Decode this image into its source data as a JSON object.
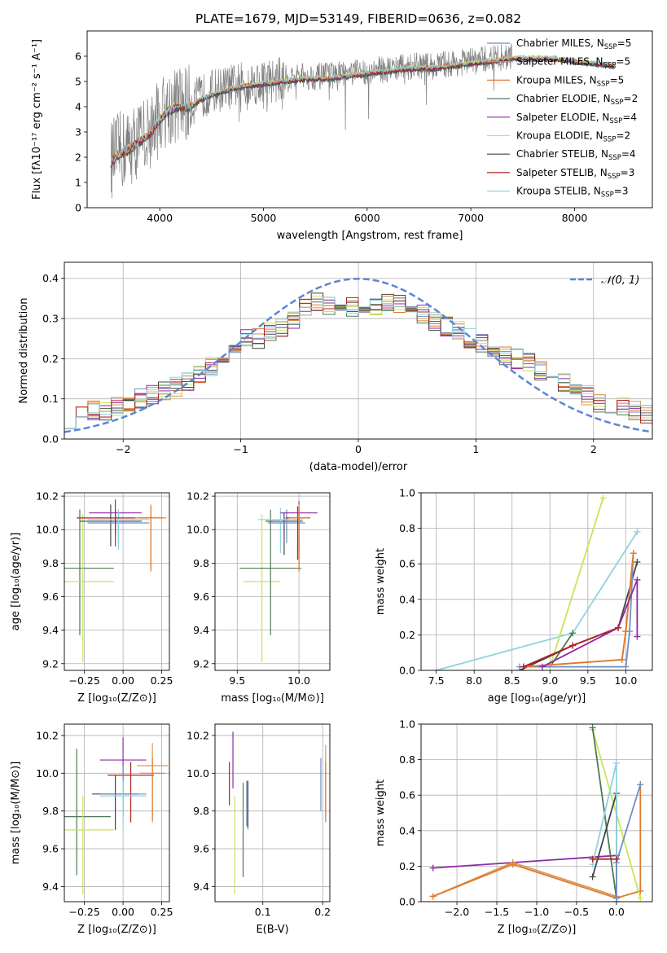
{
  "figure": {
    "title": "PLATE=1679, MJD=53149, FIBERID=0636, z=0.082"
  },
  "colors": {
    "Chabrier MILES": "#6f8fc6",
    "Salpeter MILES": "#d99a55",
    "Kroupa MILES": "#e07a2e",
    "Chabrier ELODIE": "#4f7a55",
    "Salpeter ELODIE": "#8e2aa6",
    "Kroupa ELODIE": "#c9e45a",
    "Chabrier STELIB": "#444444",
    "Salpeter STELIB": "#b22222",
    "Kroupa STELIB": "#8fd3e0",
    "data": "#808080",
    "gauss": "#5b86d6"
  },
  "chart_data": [
    {
      "type": "line",
      "xlabel": "wavelength [Angstrom, rest frame]",
      "ylabel": "Flux [fλ10⁻¹⁷ erg cm⁻² s⁻¹ A⁻¹]",
      "xlim": [
        3300,
        8750
      ],
      "ylim": [
        0,
        7
      ],
      "xticks": [
        4000,
        5000,
        6000,
        7000,
        8000
      ],
      "yticks": [
        0,
        1,
        2,
        3,
        4,
        5,
        6
      ],
      "legend": [
        {
          "label": "Chabrier MILES, N",
          "sub": "SSP",
          "tail": "=5"
        },
        {
          "label": "Salpeter MILES, N",
          "sub": "SSP",
          "tail": "=5"
        },
        {
          "label": "Kroupa MILES, N",
          "sub": "SSP",
          "tail": "=5"
        },
        {
          "label": "Chabrier ELODIE, N",
          "sub": "SSP",
          "tail": "=2"
        },
        {
          "label": "Salpeter ELODIE, N",
          "sub": "SSP",
          "tail": "=4"
        },
        {
          "label": "Kroupa ELODIE, N",
          "sub": "SSP",
          "tail": "=2"
        },
        {
          "label": "Chabrier STELIB, N",
          "sub": "SSP",
          "tail": "=4"
        },
        {
          "label": "Salpeter STELIB, N",
          "sub": "SSP",
          "tail": "=3"
        },
        {
          "label": "Kroupa STELIB, N",
          "sub": "SSP",
          "tail": "=3"
        }
      ],
      "legend_position": "upper right",
      "data_continuum": {
        "x": [
          3530,
          3600,
          3700,
          3800,
          3900,
          4000,
          4100,
          4200,
          4300,
          4400,
          4500,
          4600,
          4800,
          5000,
          5200,
          5400,
          5600,
          5800,
          6000,
          6200,
          6400,
          6600,
          6800,
          7000,
          7200,
          7400
        ],
        "y": [
          1.9,
          2.2,
          2.4,
          2.7,
          3.0,
          3.6,
          4.0,
          4.1,
          4.1,
          4.4,
          4.6,
          4.7,
          4.9,
          5.0,
          5.1,
          5.2,
          5.2,
          5.3,
          5.4,
          5.5,
          5.6,
          5.6,
          5.7,
          5.8,
          5.9,
          6.0
        ]
      },
      "model_continuum": {
        "x": [
          3530,
          3600,
          3700,
          3800,
          3900,
          4000,
          4100,
          4200,
          4300,
          4400,
          4600,
          4800,
          5000,
          5200,
          5400,
          5600,
          5800,
          6000,
          6200,
          6400,
          6600,
          6800,
          7000,
          7200,
          7400,
          7600,
          7800,
          8000,
          8200,
          8400
        ],
        "y": [
          1.8,
          2.1,
          2.3,
          2.6,
          2.9,
          3.5,
          3.9,
          4.0,
          4.0,
          4.3,
          4.6,
          4.8,
          4.9,
          5.0,
          5.1,
          5.1,
          5.2,
          5.3,
          5.4,
          5.5,
          5.5,
          5.6,
          5.7,
          5.8,
          5.9,
          5.9,
          5.9,
          5.8,
          5.7,
          5.6
        ]
      }
    },
    {
      "type": "bar",
      "xlabel": "(data-model)/error",
      "ylabel": "Normed distribution",
      "xlim": [
        -2.5,
        2.5
      ],
      "ylim": [
        0,
        0.44
      ],
      "xticks": [
        -2,
        -1,
        0,
        1,
        2
      ],
      "yticks": [
        0.0,
        0.1,
        0.2,
        0.3,
        0.4
      ],
      "gauss_label": "𝒩(0, 1)",
      "bin_width": 0.1,
      "bin_left_edges": [
        -2.5,
        -2.4,
        -2.3,
        -2.2,
        -2.1,
        -2.0,
        -1.9,
        -1.8,
        -1.7,
        -1.6,
        -1.5,
        -1.4,
        -1.3,
        -1.2,
        -1.1,
        -1.0,
        -0.9,
        -0.8,
        -0.7,
        -0.6,
        -0.5,
        -0.4,
        -0.3,
        -0.2,
        -0.1,
        0.0,
        0.1,
        0.2,
        0.3,
        0.4,
        0.5,
        0.6,
        0.7,
        0.8,
        0.9,
        1.0,
        1.1,
        1.2,
        1.3,
        1.4,
        1.5,
        1.6,
        1.7,
        1.8,
        1.9,
        2.0,
        2.1,
        2.2,
        2.3,
        2.4
      ],
      "hist": [
        0.05,
        0.06,
        0.07,
        0.07,
        0.08,
        0.09,
        0.1,
        0.11,
        0.12,
        0.13,
        0.14,
        0.16,
        0.18,
        0.2,
        0.22,
        0.25,
        0.25,
        0.27,
        0.28,
        0.3,
        0.33,
        0.34,
        0.33,
        0.32,
        0.33,
        0.32,
        0.33,
        0.34,
        0.34,
        0.33,
        0.31,
        0.29,
        0.28,
        0.27,
        0.25,
        0.24,
        0.23,
        0.21,
        0.2,
        0.19,
        0.17,
        0.15,
        0.14,
        0.13,
        0.11,
        0.09,
        0.09,
        0.08,
        0.07,
        0.06
      ]
    },
    {
      "type": "scatter",
      "xlabel": "Z [log₁₀(Z/Z⊙)]",
      "ylabel": "age  [log₁₀(age/yr)]",
      "xlim": [
        -0.38,
        0.3
      ],
      "ylim": [
        9.16,
        10.22
      ],
      "xticks": [
        -0.25,
        0.0,
        0.25
      ],
      "xticklabels": [
        "−0.25",
        "0.00",
        "0.25"
      ],
      "yticks": [
        9.2,
        9.4,
        9.6,
        9.8,
        10.0,
        10.2
      ],
      "points": [
        {
          "model": "Chabrier ELODIE",
          "x": -0.28,
          "y": 9.77,
          "xerr": 0.22,
          "yerr": [
            0.4,
            0.35
          ]
        },
        {
          "model": "Kroupa ELODIE",
          "x": -0.26,
          "y": 9.69,
          "xerr": 0.2,
          "yerr": [
            0.48,
            0.4
          ]
        },
        {
          "model": "Chabrier STELIB",
          "x": -0.08,
          "y": 10.05,
          "xerr": 0.2,
          "yerr": [
            0.15,
            0.1
          ]
        },
        {
          "model": "Salpeter ELODIE",
          "x": -0.05,
          "y": 10.1,
          "xerr": 0.17,
          "yerr": [
            0.2,
            0.08
          ]
        },
        {
          "model": "Chabrier MILES",
          "x": -0.03,
          "y": 10.04,
          "xerr": 0.2,
          "yerr": [
            0.12,
            0.08
          ]
        },
        {
          "model": "Kroupa STELIB",
          "x": -0.03,
          "y": 10.06,
          "xerr": 0.2,
          "yerr": [
            0.18,
            0.06
          ]
        },
        {
          "model": "Salpeter STELIB",
          "x": -0.05,
          "y": 10.07,
          "xerr": 0.25,
          "yerr": [
            0.1,
            0.05
          ]
        },
        {
          "model": "Salpeter MILES",
          "x": 0.18,
          "y": 10.07,
          "xerr": 0.1,
          "yerr": [
            0.3,
            0.08
          ]
        },
        {
          "model": "Kroupa MILES",
          "x": 0.18,
          "y": 10.07,
          "xerr": 0.08,
          "yerr": [
            0.32,
            0.07
          ]
        }
      ]
    },
    {
      "type": "scatter",
      "xlabel": "mass [log₁₀(M/M⊙)]",
      "ylabel": "",
      "xlim": [
        9.32,
        10.25
      ],
      "ylim": [
        9.16,
        10.22
      ],
      "xticks": [
        9.5,
        10.0
      ],
      "xticklabels": [
        "9.5",
        "10.0"
      ],
      "yticks": [
        9.2,
        9.4,
        9.6,
        9.8,
        10.0,
        10.2
      ],
      "points": [
        {
          "model": "Kroupa ELODIE",
          "x": 9.7,
          "y": 9.69,
          "xerr": 0.15,
          "yerr": [
            0.48,
            0.4
          ]
        },
        {
          "model": "Chabrier ELODIE",
          "x": 9.77,
          "y": 9.77,
          "xerr": 0.25,
          "yerr": [
            0.4,
            0.35
          ]
        },
        {
          "model": "Chabrier STELIB",
          "x": 9.88,
          "y": 10.05,
          "xerr": 0.15,
          "yerr": [
            0.2,
            0.05
          ]
        },
        {
          "model": "Kroupa STELIB",
          "x": 9.85,
          "y": 10.06,
          "xerr": 0.18,
          "yerr": [
            0.2,
            0.07
          ]
        },
        {
          "model": "Chabrier MILES",
          "x": 9.9,
          "y": 10.04,
          "xerr": 0.15,
          "yerr": [
            0.12,
            0.08
          ]
        },
        {
          "model": "Salpeter STELIB",
          "x": 9.99,
          "y": 10.07,
          "xerr": 0.1,
          "yerr": [
            0.25,
            0.07
          ]
        },
        {
          "model": "Salpeter ELODIE",
          "x": 10.0,
          "y": 10.1,
          "xerr": 0.15,
          "yerr": [
            0.25,
            0.07
          ]
        },
        {
          "model": "Salpeter MILES",
          "x": 10.0,
          "y": 10.07,
          "xerr": 0.08,
          "yerr": [
            0.3,
            0.08
          ]
        },
        {
          "model": "Kroupa MILES",
          "x": 10.0,
          "y": 10.07,
          "xerr": 0.08,
          "yerr": [
            0.32,
            0.06
          ]
        }
      ]
    },
    {
      "type": "line",
      "xlabel": "age  [log₁₀(age/yr)]",
      "ylabel": "mass weight",
      "xlim": [
        7.3,
        10.35
      ],
      "ylim": [
        0,
        1.0
      ],
      "xticks": [
        7.5,
        8.0,
        8.5,
        9.0,
        9.5,
        10.0
      ],
      "xticklabels": [
        "7.5",
        "8.0",
        "8.5",
        "9.0",
        "9.5",
        "10.0"
      ],
      "yticks": [
        0.0,
        0.2,
        0.4,
        0.6,
        0.8,
        1.0
      ],
      "yticklabels": [
        "0.0",
        "0.2",
        "0.4",
        "0.6",
        "0.8",
        "1.0"
      ],
      "series": [
        {
          "model": "Kroupa STELIB",
          "x": [
            7.5,
            9.3,
            10.15
          ],
          "y": [
            0.0,
            0.21,
            0.78
          ]
        },
        {
          "model": "Chabrier ELODIE",
          "x": [
            9.0,
            9.3
          ],
          "y": [
            0.02,
            0.21
          ]
        },
        {
          "model": "Kroupa ELODIE",
          "x": [
            9.0,
            9.7
          ],
          "y": [
            0.02,
            0.97
          ]
        },
        {
          "model": "Chabrier STELIB",
          "x": [
            8.6,
            9.3,
            9.9,
            10.15
          ],
          "y": [
            0.0,
            0.14,
            0.24,
            0.61
          ]
        },
        {
          "model": "Chabrier MILES",
          "x": [
            8.6,
            10.0,
            10.05,
            10.1
          ],
          "y": [
            0.02,
            0.02,
            0.22,
            0.66
          ]
        },
        {
          "model": "Salpeter MILES",
          "x": [
            8.65,
            9.95,
            10.0,
            10.1
          ],
          "y": [
            0.02,
            0.06,
            0.22,
            0.66
          ]
        },
        {
          "model": "Kroupa MILES",
          "x": [
            8.65,
            9.95,
            10.0,
            10.1
          ],
          "y": [
            0.02,
            0.06,
            0.22,
            0.66
          ]
        },
        {
          "model": "Salpeter ELODIE",
          "x": [
            8.9,
            9.9,
            10.15,
            10.15
          ],
          "y": [
            0.02,
            0.24,
            0.51,
            0.19
          ]
        },
        {
          "model": "Salpeter STELIB",
          "x": [
            8.65,
            9.3,
            9.9
          ],
          "y": [
            0.02,
            0.14,
            0.24
          ]
        }
      ]
    },
    {
      "type": "scatter",
      "xlabel": "Z [log₁₀(Z/Z⊙)]",
      "ylabel": "mass [log₁₀(M/M⊙)]",
      "xlim": [
        -0.38,
        0.3
      ],
      "ylim": [
        9.32,
        10.26
      ],
      "xticks": [
        -0.25,
        0.0,
        0.25
      ],
      "xticklabels": [
        "−0.25",
        "0.00",
        "0.25"
      ],
      "yticks": [
        9.4,
        9.6,
        9.8,
        10.0,
        10.2
      ],
      "points": [
        {
          "model": "Chabrier ELODIE",
          "x": -0.3,
          "y": 9.77,
          "xerr": 0.22,
          "yerr": [
            0.31,
            0.36
          ]
        },
        {
          "model": "Kroupa ELODIE",
          "x": -0.26,
          "y": 9.7,
          "xerr": 0.2,
          "yerr": [
            0.34,
            0.18
          ]
        },
        {
          "model": "Chabrier STELIB",
          "x": -0.05,
          "y": 9.89,
          "xerr": 0.15,
          "yerr": [
            0.19,
            0.1
          ]
        },
        {
          "model": "Salpeter STELIB",
          "x": 0.05,
          "y": 9.99,
          "xerr": 0.15,
          "yerr": [
            0.25,
            0.07
          ]
        },
        {
          "model": "Salpeter ELODIE",
          "x": 0.0,
          "y": 10.07,
          "xerr": 0.15,
          "yerr": [
            0.3,
            0.12
          ]
        },
        {
          "model": "Chabrier MILES",
          "x": 0.0,
          "y": 9.89,
          "xerr": 0.15,
          "yerr": [
            0.12,
            0.15
          ]
        },
        {
          "model": "Kroupa STELIB",
          "x": 0.0,
          "y": 9.88,
          "xerr": 0.15,
          "yerr": [
            0.17,
            0.08
          ]
        },
        {
          "model": "Salpeter MILES",
          "x": 0.19,
          "y": 10.04,
          "xerr": 0.1,
          "yerr": [
            0.3,
            0.12
          ]
        },
        {
          "model": "Kroupa MILES",
          "x": 0.19,
          "y": 10.0,
          "xerr": 0.08,
          "yerr": [
            0.25,
            0.08
          ]
        }
      ]
    },
    {
      "type": "scatter",
      "xlabel": "E(B-V)",
      "ylabel": "",
      "xlim": [
        0.02,
        0.212
      ],
      "ylim": [
        9.32,
        10.26
      ],
      "xticks": [
        0.1,
        0.2
      ],
      "xticklabels": [
        "0.1",
        "0.2"
      ],
      "yticks": [
        9.4,
        9.6,
        9.8,
        10.0,
        10.2
      ],
      "points": [
        {
          "model": "Salpeter STELIB",
          "x": 0.044,
          "y": 9.95,
          "yerr": [
            0.12,
            0.11
          ]
        },
        {
          "model": "Salpeter ELODIE",
          "x": 0.05,
          "y": 10.07,
          "yerr": [
            0.15,
            0.15
          ]
        },
        {
          "model": "Kroupa ELODIE",
          "x": 0.053,
          "y": 9.7,
          "yerr": [
            0.34,
            0.18
          ]
        },
        {
          "model": "Chabrier ELODIE",
          "x": 0.067,
          "y": 9.75,
          "yerr": [
            0.3,
            0.2
          ]
        },
        {
          "model": "Chabrier MILES",
          "x": 0.073,
          "y": 9.88,
          "yerr": [
            0.16,
            0.08
          ]
        },
        {
          "model": "Kroupa STELIB",
          "x": 0.075,
          "y": 9.88,
          "yerr": [
            0.18,
            0.08
          ]
        },
        {
          "model": "Chabrier STELIB",
          "x": 0.075,
          "y": 9.88,
          "yerr": [
            0.17,
            0.08
          ]
        },
        {
          "model": "Chabrier MILES",
          "x": 0.197,
          "y": 9.95,
          "yerr": [
            0.15,
            0.13
          ]
        },
        {
          "model": "Salpeter MILES",
          "x": 0.205,
          "y": 10.0,
          "yerr": [
            0.24,
            0.15
          ]
        },
        {
          "model": "Kroupa MILES",
          "x": 0.205,
          "y": 9.9,
          "yerr": [
            0.16,
            0.16
          ]
        }
      ]
    },
    {
      "type": "line",
      "xlabel": "Z [log₁₀(Z/Z⊙)]",
      "ylabel": "mass weight",
      "xlim": [
        -2.45,
        0.45
      ],
      "ylim": [
        0,
        1.0
      ],
      "xticks": [
        -2.0,
        -1.5,
        -1.0,
        -0.5,
        0.0
      ],
      "xticklabels": [
        "−2.0",
        "−1.5",
        "−1.0",
        "−0.5",
        "0.0"
      ],
      "yticks": [
        0.0,
        0.2,
        0.4,
        0.6,
        0.8,
        1.0
      ],
      "yticklabels": [
        "0.0",
        "0.2",
        "0.4",
        "0.6",
        "0.8",
        "1.0"
      ],
      "series": [
        {
          "model": "Salpeter ELODIE",
          "x": [
            -2.3,
            -1.3,
            0.0
          ],
          "y": [
            0.19,
            0.22,
            0.26
          ]
        },
        {
          "model": "Salpeter MILES",
          "x": [
            -2.3,
            -1.3,
            0.0
          ],
          "y": [
            0.03,
            0.22,
            0.03
          ]
        },
        {
          "model": "Kroupa MILES",
          "x": [
            -2.3,
            -1.3,
            0.0,
            0.3,
            0.3
          ],
          "y": [
            0.03,
            0.21,
            0.02,
            0.06,
            0.66
          ]
        },
        {
          "model": "Kroupa ELODIE",
          "x": [
            -0.3,
            0.3
          ],
          "y": [
            0.97,
            0.02
          ]
        },
        {
          "model": "Chabrier ELODIE",
          "x": [
            -0.3,
            0.0
          ],
          "y": [
            0.98,
            0.02
          ]
        },
        {
          "model": "Chabrier STELIB",
          "x": [
            -0.3,
            0.0,
            0.0
          ],
          "y": [
            0.14,
            0.61,
            0.0
          ]
        },
        {
          "model": "Kroupa STELIB",
          "x": [
            -0.3,
            0.0,
            0.0
          ],
          "y": [
            0.21,
            0.78,
            0.0
          ]
        },
        {
          "model": "Chabrier MILES",
          "x": [
            0.0,
            0.0,
            0.3
          ],
          "y": [
            0.02,
            0.22,
            0.66
          ]
        },
        {
          "model": "Salpeter STELIB",
          "x": [
            -0.3,
            0.0
          ],
          "y": [
            0.24,
            0.24
          ]
        }
      ]
    }
  ]
}
